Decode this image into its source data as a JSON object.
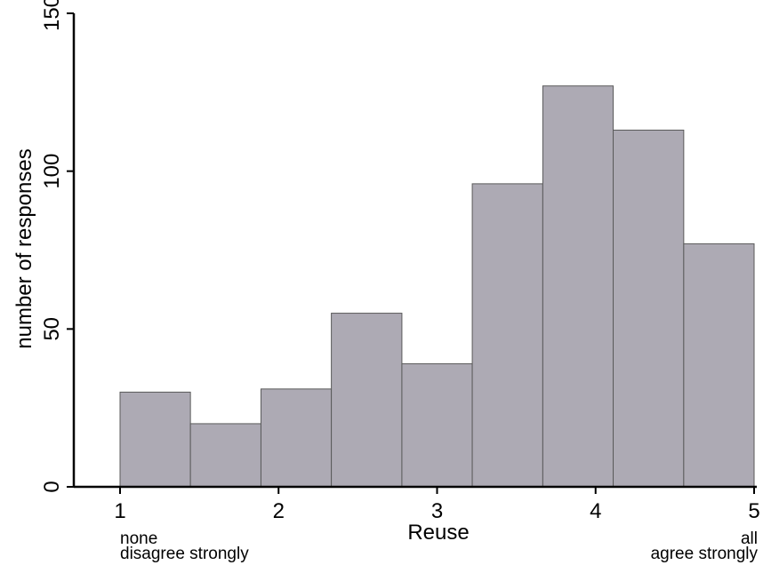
{
  "chart_data": {
    "type": "bar",
    "title": "",
    "xlabel": "Reuse",
    "ylabel": "number of responses",
    "xlim": [
      1,
      5
    ],
    "ylim": [
      0,
      150
    ],
    "x_ticks": [
      1,
      2,
      3,
      4,
      5
    ],
    "y_ticks": [
      0,
      50,
      100,
      150
    ],
    "bins": [
      {
        "start": 1.0,
        "end": 1.444,
        "count": 30
      },
      {
        "start": 1.444,
        "end": 1.889,
        "count": 20
      },
      {
        "start": 1.889,
        "end": 2.333,
        "count": 31
      },
      {
        "start": 2.333,
        "end": 2.778,
        "count": 55
      },
      {
        "start": 2.778,
        "end": 3.222,
        "count": 39
      },
      {
        "start": 3.222,
        "end": 3.667,
        "count": 96
      },
      {
        "start": 3.667,
        "end": 4.111,
        "count": 127
      },
      {
        "start": 4.111,
        "end": 4.556,
        "count": 113
      },
      {
        "start": 4.556,
        "end": 5.0,
        "count": 77
      }
    ],
    "bar_color": "#adaab4",
    "bar_edge_color": "#5a5a5a",
    "grid": false,
    "annotations": {
      "left": [
        "none",
        "disagree strongly"
      ],
      "right": [
        "all",
        "agree strongly"
      ]
    }
  }
}
